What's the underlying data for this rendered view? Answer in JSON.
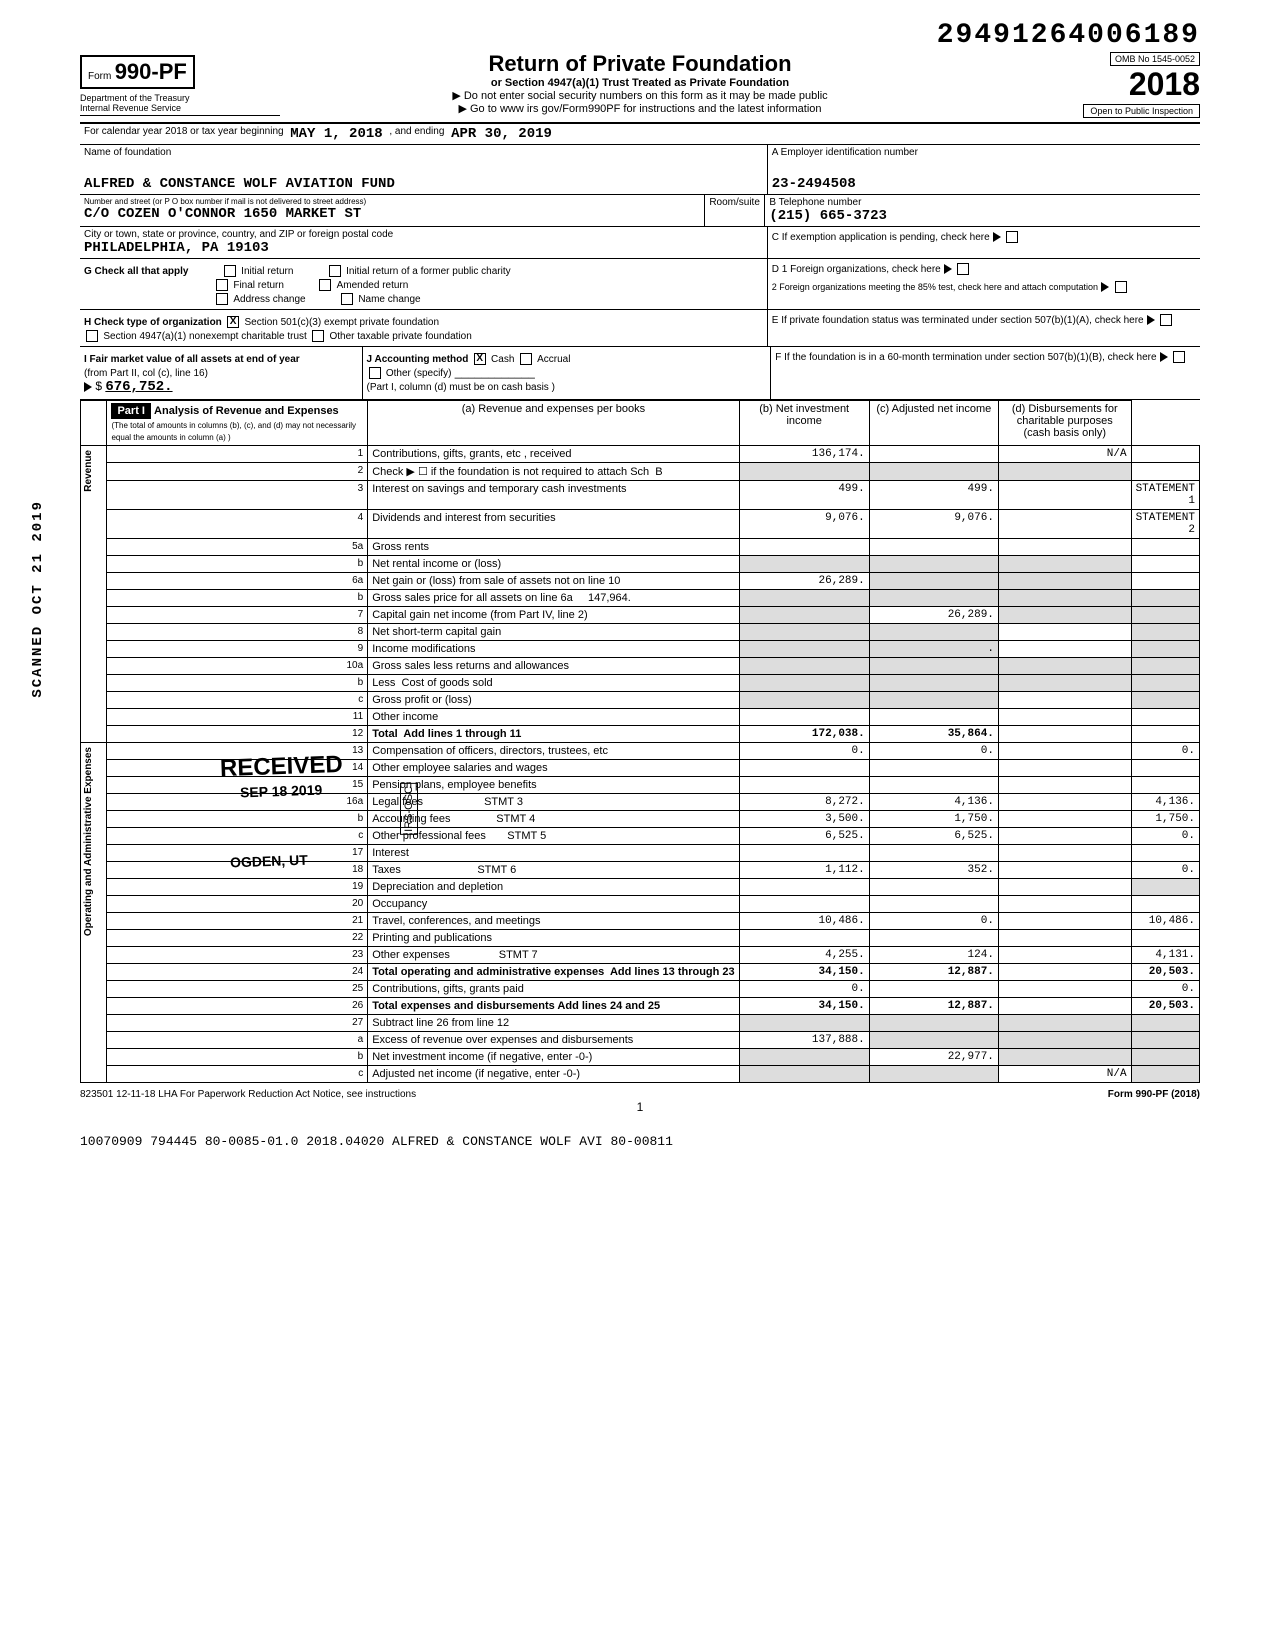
{
  "top_number": "29491264006189",
  "form": {
    "prefix": "Form",
    "number": "990-PF"
  },
  "dept": "Department of the Treasury\nInternal Revenue Service",
  "title": "Return of Private Foundation",
  "subtitle": "or Section 4947(a)(1) Trust Treated as Private Foundation",
  "note1": "▶ Do not enter social security numbers on this form as it may be made public",
  "note2": "▶ Go to www irs gov/Form990PF for instructions and the latest information",
  "omb": "OMB No  1545-0052",
  "year": "2018",
  "inspection": "Open to Public Inspection",
  "cal_year": "For calendar year 2018 or tax year beginning",
  "begin": "MAY 1, 2018",
  "and_ending": ", and ending",
  "end": "APR 30, 2019",
  "name_label": "Name of foundation",
  "name": "ALFRED & CONSTANCE WOLF AVIATION FUND",
  "ein_label": "A Employer identification number",
  "ein": "23-2494508",
  "addr_label": "Number and street (or P O  box number if mail is not delivered to street address)",
  "addr": "C/O COZEN O'CONNOR 1650 MARKET ST",
  "room_label": "Room/suite",
  "tel_label": "B  Telephone number",
  "tel": "(215) 665-3723",
  "city_label": "City or town, state or province, country, and ZIP or foreign postal code",
  "city": "PHILADELPHIA, PA  19103",
  "c_label": "C  If exemption application is pending, check here",
  "g_label": "G  Check all that apply",
  "g_opts": [
    "Initial return",
    "Final return",
    "Address change",
    "Initial return of a former public charity",
    "Amended return",
    "Name change"
  ],
  "d1": "D  1  Foreign organizations, check here",
  "d2": "2  Foreign organizations meeting the 85% test, check here and attach computation",
  "h_label": "H  Check type of organization",
  "h_opt1": "Section 501(c)(3) exempt private foundation",
  "h_opt2": "Section 4947(a)(1) nonexempt charitable trust",
  "h_opt3": "Other taxable private foundation",
  "e_label": "E  If private foundation status was terminated under section 507(b)(1)(A), check here",
  "i_label": "I  Fair market value of all assets at end of year",
  "i_sub": "(from Part II, col  (c), line 16)",
  "i_val": "676,752.",
  "j_label": "J  Accounting method",
  "j_cash": "Cash",
  "j_accrual": "Accrual",
  "j_other": "Other (specify)",
  "j_note": "(Part I, column (d) must be on cash basis )",
  "f_label": "F  If the foundation is in a 60-month termination under section 507(b)(1)(B), check here",
  "part1_label": "Part I",
  "part1_title": "Analysis of Revenue and Expenses",
  "part1_sub": "(The total of amounts in columns (b), (c), and (d) may not necessarily equal the amounts in column (a) )",
  "col_a": "(a) Revenue and expenses per books",
  "col_b": "(b) Net investment income",
  "col_c": "(c) Adjusted net income",
  "col_d": "(d) Disbursements for charitable purposes (cash basis only)",
  "sect_rev": "Revenue",
  "sect_exp": "Operating and Administrative Expenses",
  "rows": [
    {
      "n": "1",
      "d": "",
      "a": "136,174.",
      "b": "",
      "c": "N/A"
    },
    {
      "n": "2",
      "d": "",
      "a": "",
      "b": "",
      "c": "",
      "shade_bcd": true
    },
    {
      "n": "3",
      "d": "STATEMENT 1",
      "a": "499.",
      "b": "499.",
      "c": ""
    },
    {
      "n": "4",
      "d": "STATEMENT 2",
      "a": "9,076.",
      "b": "9,076.",
      "c": ""
    },
    {
      "n": "5a",
      "d": "",
      "a": "",
      "b": "",
      "c": ""
    },
    {
      "n": "b",
      "d": "",
      "a": "",
      "b": "",
      "c": "",
      "shade_bcd": true
    },
    {
      "n": "6a",
      "d": "",
      "a": "26,289.",
      "b": "",
      "c": "",
      "shade_bcd": true,
      "shade_b": false
    },
    {
      "n": "b",
      "d": "",
      "a": "",
      "b": "",
      "c": "",
      "shade_all": true
    },
    {
      "n": "7",
      "d": "",
      "a": "",
      "b": "26,289.",
      "c": "",
      "shade_a": true
    },
    {
      "n": "8",
      "d": "",
      "a": "",
      "b": "",
      "c": "",
      "shade_ab": true
    },
    {
      "n": "9",
      "d": "",
      "a": "",
      "b": ".",
      "c": "",
      "shade_ab": true
    },
    {
      "n": "10a",
      "d": "",
      "a": "",
      "b": "",
      "c": "",
      "shade_all": true
    },
    {
      "n": "b",
      "d": "",
      "a": "",
      "b": "",
      "c": "",
      "shade_all": true
    },
    {
      "n": "c",
      "d": "",
      "a": "",
      "b": "",
      "c": "",
      "shade_ab": true
    },
    {
      "n": "11",
      "d": "",
      "a": "",
      "b": "",
      "c": ""
    },
    {
      "n": "12",
      "d": "",
      "a": "172,038.",
      "b": "35,864.",
      "c": "",
      "bold": true
    },
    {
      "n": "13",
      "d": "0.",
      "a": "0.",
      "b": "0.",
      "c": ""
    },
    {
      "n": "14",
      "d": "",
      "a": "",
      "b": "",
      "c": ""
    },
    {
      "n": "15",
      "d": "",
      "a": "",
      "b": "",
      "c": ""
    },
    {
      "n": "16a",
      "d": "4,136.",
      "a": "8,272.",
      "b": "4,136.",
      "c": ""
    },
    {
      "n": "b",
      "d": "1,750.",
      "a": "3,500.",
      "b": "1,750.",
      "c": ""
    },
    {
      "n": "c",
      "d": "0.",
      "a": "6,525.",
      "b": "6,525.",
      "c": ""
    },
    {
      "n": "17",
      "d": "",
      "a": "",
      "b": "",
      "c": ""
    },
    {
      "n": "18",
      "d": "0.",
      "a": "1,112.",
      "b": "352.",
      "c": ""
    },
    {
      "n": "19",
      "d": "",
      "a": "",
      "b": "",
      "c": "",
      "shade_d": true
    },
    {
      "n": "20",
      "d": "",
      "a": "",
      "b": "",
      "c": ""
    },
    {
      "n": "21",
      "d": "10,486.",
      "a": "10,486.",
      "b": "0.",
      "c": ""
    },
    {
      "n": "22",
      "d": "",
      "a": "",
      "b": "",
      "c": ""
    },
    {
      "n": "23",
      "d": "4,131.",
      "a": "4,255.",
      "b": "124.",
      "c": ""
    },
    {
      "n": "24",
      "d": "20,503.",
      "a": "34,150.",
      "b": "12,887.",
      "c": "",
      "bold": true
    },
    {
      "n": "25",
      "d": "0.",
      "a": "0.",
      "b": "",
      "c": ""
    },
    {
      "n": "26",
      "d": "20,503.",
      "a": "34,150.",
      "b": "12,887.",
      "c": "",
      "bold": true
    },
    {
      "n": "27",
      "d": "",
      "a": "",
      "b": "",
      "c": "",
      "shade_all": true
    },
    {
      "n": "a",
      "d": "",
      "a": "137,888.",
      "b": "",
      "c": "",
      "shade_bcd": true
    },
    {
      "n": "b",
      "d": "",
      "a": "",
      "b": "22,977.",
      "c": "",
      "shade_acd": true,
      "shade_a": true
    },
    {
      "n": "c",
      "d": "",
      "a": "",
      "b": "",
      "c": "N/A",
      "shade_abd": true
    }
  ],
  "footer_left": "823501  12-11-18   LHA   For Paperwork Reduction Act Notice, see instructions",
  "footer_right": "Form 990-PF (2018)",
  "page": "1",
  "scanline": "10070909 794445 80-0085-01.0  2018.04020 ALFRED & CONSTANCE WOLF AVI 80-00811",
  "side_stamp": "SCANNED OCT 21 2019",
  "received_stamp": "RECEIVED",
  "received_sub": "SEP 18 2019",
  "ogden": "OGDEN, UT",
  "irs_osc": "IRS-OSC"
}
